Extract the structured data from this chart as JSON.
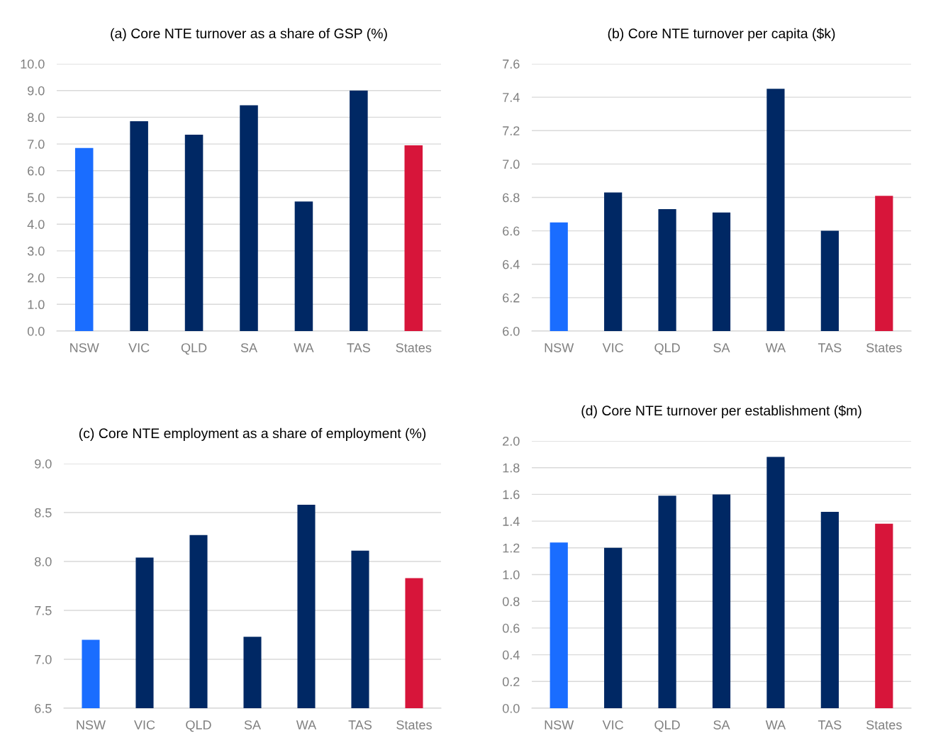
{
  "chart_data": [
    {
      "type": "bar",
      "title": "(a) Core NTE turnover as a share of GSP (%)",
      "categories": [
        "NSW",
        "VIC",
        "QLD",
        "SA",
        "WA",
        "TAS",
        "States"
      ],
      "values": [
        6.85,
        7.85,
        7.35,
        8.45,
        4.85,
        9.0,
        6.95
      ],
      "colors": [
        "#1a6dff",
        "#002864",
        "#002864",
        "#002864",
        "#002864",
        "#002864",
        "#d7153a"
      ],
      "ylim": [
        0,
        10
      ],
      "yticks": [
        {
          "value": 0,
          "label": "0.0"
        },
        {
          "value": 1,
          "label": "1.0"
        },
        {
          "value": 2,
          "label": "2.0"
        },
        {
          "value": 3,
          "label": "3.0"
        },
        {
          "value": 4,
          "label": "4.0"
        },
        {
          "value": 5,
          "label": "5.0"
        },
        {
          "value": 6,
          "label": "6.0"
        },
        {
          "value": 7,
          "label": "7.0"
        },
        {
          "value": 8,
          "label": "8.0"
        },
        {
          "value": 9,
          "label": "9.0"
        },
        {
          "value": 10,
          "label": "10.0"
        }
      ],
      "grid": "y",
      "legend": false
    },
    {
      "type": "bar",
      "title": "(b) Core NTE turnover per capita ($k)",
      "categories": [
        "NSW",
        "VIC",
        "QLD",
        "SA",
        "WA",
        "TAS",
        "States"
      ],
      "values": [
        6.65,
        6.83,
        6.73,
        6.71,
        7.45,
        6.6,
        6.81
      ],
      "colors": [
        "#1a6dff",
        "#002864",
        "#002864",
        "#002864",
        "#002864",
        "#002864",
        "#d7153a"
      ],
      "ylim": [
        6.0,
        7.6
      ],
      "yticks": [
        {
          "value": 6.0,
          "label": "6.0"
        },
        6.2,
        6.4,
        6.6,
        6.8,
        {
          "value": 7.0,
          "label": "7.0"
        },
        7.2,
        7.4,
        7.6
      ],
      "grid": "y",
      "legend": false
    },
    {
      "type": "bar",
      "title": "(c) Core NTE employment as a share of employment (%)",
      "categories": [
        "NSW",
        "VIC",
        "QLD",
        "SA",
        "WA",
        "TAS",
        "States"
      ],
      "values": [
        7.2,
        8.04,
        8.27,
        7.23,
        8.58,
        8.11,
        7.83
      ],
      "colors": [
        "#1a6dff",
        "#002864",
        "#002864",
        "#002864",
        "#002864",
        "#002864",
        "#d7153a"
      ],
      "ylim": [
        6.5,
        9.0
      ],
      "yticks": [
        6.5,
        {
          "value": 7.0,
          "label": "7.0"
        },
        7.5,
        {
          "value": 8.0,
          "label": "8.0"
        },
        8.5,
        {
          "value": 9.0,
          "label": "9.0"
        }
      ],
      "grid": "y",
      "legend": false
    },
    {
      "type": "bar",
      "title": "(d) Core NTE turnover per establishment ($m)",
      "categories": [
        "NSW",
        "VIC",
        "QLD",
        "SA",
        "WA",
        "TAS",
        "States"
      ],
      "values": [
        1.24,
        1.2,
        1.59,
        1.6,
        1.88,
        1.47,
        1.38
      ],
      "colors": [
        "#1a6dff",
        "#002864",
        "#002864",
        "#002864",
        "#002864",
        "#002864",
        "#d7153a"
      ],
      "ylim": [
        0,
        2.0
      ],
      "yticks": [
        {
          "value": 0,
          "label": "0.0"
        },
        0.2,
        0.4,
        0.6,
        0.8,
        {
          "value": 1.0,
          "label": "1.0"
        },
        1.2,
        1.4,
        1.6,
        1.8,
        {
          "value": 2.0,
          "label": "2.0"
        }
      ],
      "grid": "y",
      "legend": false
    }
  ]
}
